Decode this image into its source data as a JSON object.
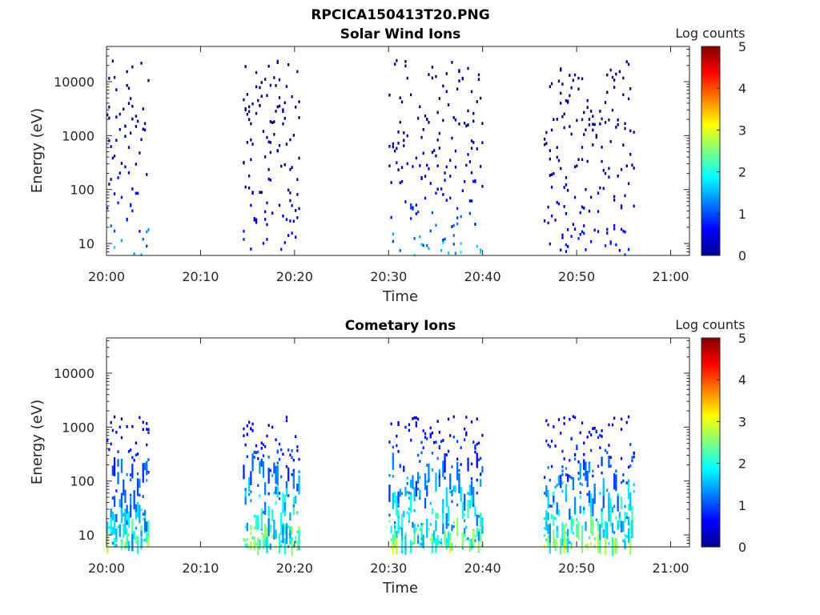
{
  "figure_title": "RPCICA150413T20.PNG",
  "chart_data": [
    {
      "type": "heatmap",
      "title": "Solar Wind Ions",
      "xlabel": "Time",
      "ylabel": "Energy (eV)",
      "x_tick_labels": [
        "20:00",
        "20:10",
        "20:20",
        "20:30",
        "20:40",
        "20:50",
        "21:00"
      ],
      "x_ticks_minutes": [
        0,
        10,
        20,
        30,
        40,
        50,
        60
      ],
      "xlim_minutes": [
        0,
        62
      ],
      "y_scale": "log",
      "ylim": [
        6,
        45000
      ],
      "y_tick_labels": [
        "10",
        "100",
        "1000",
        "10000"
      ],
      "y_ticks": [
        10,
        100,
        1000,
        10000
      ],
      "colorbar": {
        "label": "Log counts",
        "range": [
          0,
          5
        ],
        "tick_labels": [
          "0",
          "1",
          "2",
          "3",
          "4",
          "5"
        ]
      },
      "bursts": [
        {
          "start_min": 0.0,
          "end_min": 4.5,
          "peak_log_count": 2.0
        },
        {
          "start_min": 14.5,
          "end_min": 20.5,
          "peak_log_count": 1.0
        },
        {
          "start_min": 30.0,
          "end_min": 40.0,
          "peak_log_count": 2.0
        },
        {
          "start_min": 46.5,
          "end_min": 56.0,
          "peak_log_count": 1.0
        }
      ]
    },
    {
      "type": "heatmap",
      "title": "Cometary Ions",
      "xlabel": "Time",
      "ylabel": "Energy (eV)",
      "x_tick_labels": [
        "20:00",
        "20:10",
        "20:20",
        "20:30",
        "20:40",
        "20:50",
        "21:00"
      ],
      "x_ticks_minutes": [
        0,
        10,
        20,
        30,
        40,
        50,
        60
      ],
      "xlim_minutes": [
        0,
        62
      ],
      "y_scale": "log",
      "ylim": [
        6,
        45000
      ],
      "y_tick_labels": [
        "10",
        "100",
        "1000",
        "10000"
      ],
      "y_ticks": [
        10,
        100,
        1000,
        10000
      ],
      "colorbar": {
        "label": "Log counts",
        "range": [
          0,
          5
        ],
        "tick_labels": [
          "0",
          "1",
          "2",
          "3",
          "4",
          "5"
        ]
      },
      "bursts": [
        {
          "start_min": 0.0,
          "end_min": 4.5,
          "peak_log_count": 2.6
        },
        {
          "start_min": 14.5,
          "end_min": 20.5,
          "peak_log_count": 2.8
        },
        {
          "start_min": 30.0,
          "end_min": 40.0,
          "peak_log_count": 2.8
        },
        {
          "start_min": 46.5,
          "end_min": 56.0,
          "peak_log_count": 2.8
        }
      ]
    }
  ]
}
